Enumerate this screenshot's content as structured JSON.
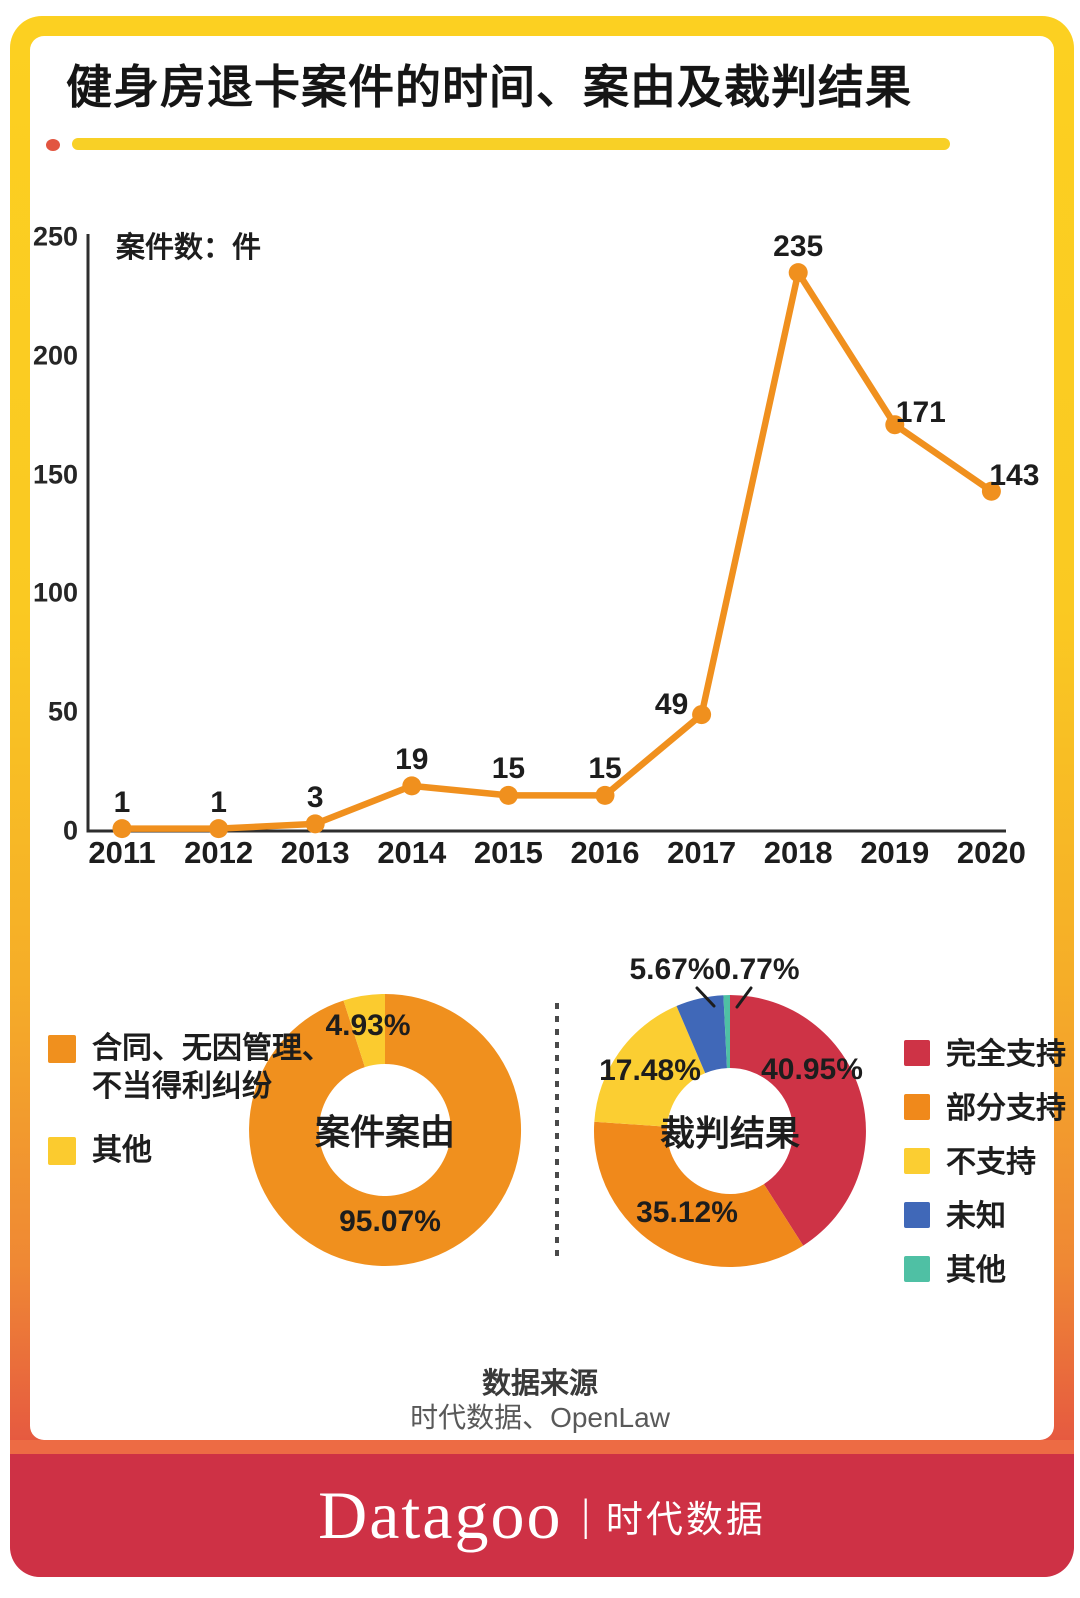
{
  "page": {
    "title": "健身房退卡案件的时间、案由及裁判结果",
    "source_label": "数据来源",
    "source_value": "时代数据、OpenLaw",
    "brand": {
      "name": "Datagoo",
      "divider": "|",
      "cn": "时代数据"
    }
  },
  "colors": {
    "frame_top": "#FCD021",
    "frame_bottom": "#CE3145",
    "underline_bar": "#F8D026",
    "underline_dot": "#E25540",
    "line_orange": "#F0901E",
    "banner": "#CE3145",
    "strip": "#ED6B44",
    "axis": "#2e2e2e"
  },
  "chart_data": [
    {
      "type": "line",
      "ylabel": "案件数：件",
      "x": [
        2011,
        2012,
        2013,
        2014,
        2015,
        2016,
        2017,
        2018,
        2019,
        2020
      ],
      "values": [
        1,
        1,
        3,
        19,
        15,
        15,
        49,
        235,
        171,
        143
      ],
      "ylim": [
        0,
        250
      ],
      "yticks": [
        0,
        50,
        100,
        150,
        200,
        250
      ],
      "grid": false,
      "line_color": "#F0901E",
      "marker_color": "#F0901E"
    },
    {
      "type": "pie",
      "title": "案件案由",
      "labels": [
        "合同、无因管理、不当得利纠纷",
        "其他"
      ],
      "legend_lines": [
        [
          "合同、无因管理、",
          "不当得利纠纷"
        ],
        [
          "其他"
        ]
      ],
      "values": [
        95.07,
        4.93
      ],
      "value_labels": [
        "95.07%",
        "4.93%"
      ],
      "colors": [
        "#F0901E",
        "#FBCB2F"
      ],
      "legend_position": "left",
      "donut": true
    },
    {
      "type": "pie",
      "title": "裁判结果",
      "labels": [
        "完全支持",
        "部分支持",
        "不支持",
        "未知",
        "其他"
      ],
      "legend_lines": [
        [
          "完全支持"
        ],
        [
          "部分支持"
        ],
        [
          "不支持"
        ],
        [
          "未知"
        ],
        [
          "其他"
        ]
      ],
      "values": [
        40.95,
        35.12,
        17.48,
        5.67,
        0.77
      ],
      "value_labels": [
        "40.95%",
        "35.12%",
        "17.48%",
        "5.67%",
        "0.77%"
      ],
      "colors": [
        "#CE3346",
        "#F0891B",
        "#FBCE32",
        "#4068B8",
        "#4FC0A4"
      ],
      "legend_position": "right",
      "donut": true
    }
  ]
}
